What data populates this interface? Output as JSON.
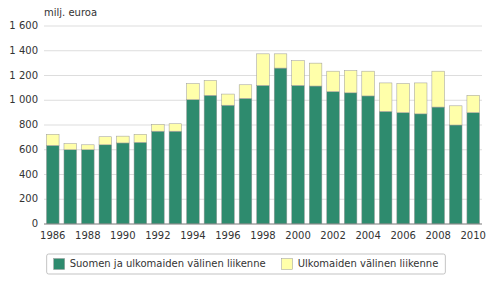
{
  "chart_data": {
    "type": "bar",
    "stacked": true,
    "y_label": "milj. euroa",
    "categories": [
      "1986",
      null,
      "1988",
      null,
      "1990",
      null,
      "1992",
      null,
      "1994",
      null,
      "1996",
      null,
      "1998",
      null,
      "2000",
      null,
      "2002",
      null,
      "2004",
      null,
      "2006",
      null,
      "2008",
      null,
      "2010"
    ],
    "series": [
      {
        "name": "Suomen ja ulkomaiden välinen liikenne",
        "color": "#2e8b6e",
        "values": [
          635,
          600,
          600,
          640,
          655,
          660,
          750,
          750,
          1005,
          1040,
          960,
          1015,
          1120,
          1260,
          1120,
          1115,
          1070,
          1060,
          1035,
          910,
          900,
          890,
          945,
          800,
          900
        ]
      },
      {
        "name": "Ulkomaiden välinen liikenne",
        "color": "#ffffaa",
        "values": [
          90,
          50,
          40,
          65,
          55,
          65,
          55,
          60,
          130,
          120,
          90,
          110,
          255,
          115,
          200,
          185,
          165,
          180,
          200,
          230,
          235,
          250,
          290,
          155,
          140
        ]
      }
    ],
    "ylim": [
      0,
      1600
    ],
    "yticks": [
      0,
      200,
      400,
      600,
      800,
      {
        "value": 1000,
        "label": "1 000"
      },
      {
        "value": 1200,
        "label": "1 200"
      },
      {
        "value": 1400,
        "label": "1 400"
      },
      {
        "value": 1600,
        "label": "1 600"
      }
    ],
    "grid": true,
    "legend": "bottom"
  }
}
